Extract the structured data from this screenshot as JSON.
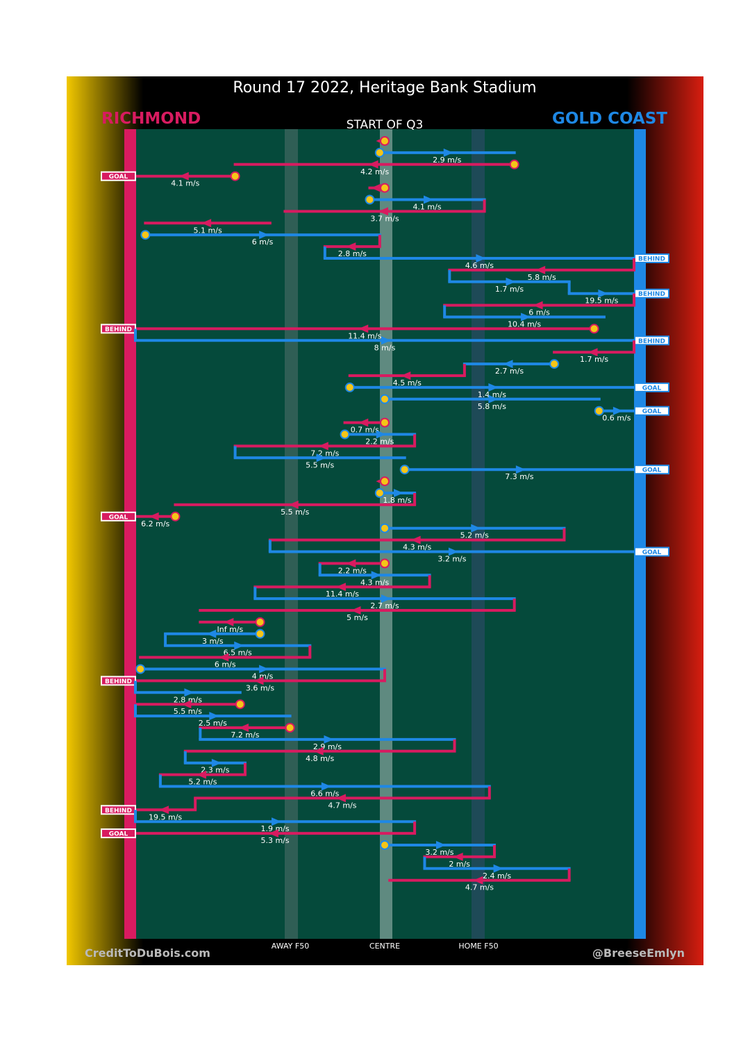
{
  "title": "Round 17 2022, Heritage Bank Stadium",
  "subtitle": "START OF Q3",
  "teams": {
    "left": {
      "name": "RICHMOND",
      "color": "#d81b60"
    },
    "right": {
      "name": "GOLD COAST",
      "color": "#1e88e5"
    }
  },
  "axis_labels": {
    "away": "AWAY F50",
    "centre": "CENTRE",
    "home": "HOME F50"
  },
  "credits": {
    "left": "CreditToDuBois.com",
    "right": "@BreeseEmlyn"
  },
  "colors": {
    "richmond": "#d81b60",
    "gold_coast": "#1e88e5",
    "ground": "#054a3b",
    "ball": "#f5c518"
  },
  "chart_data": {
    "type": "chain",
    "title": "Round 17 2022, Heritage Bank Stadium",
    "subtitle": "START OF Q3",
    "x_axis": {
      "range": [
        0,
        100
      ],
      "unit": "percent of ground (Richmond goal = 0, Gold Coast goal = 100)",
      "ticks": [
        {
          "label": "AWAY F50",
          "x": 31
        },
        {
          "label": "CENTRE",
          "x": 50
        },
        {
          "label": "HOME F50",
          "x": 69
        }
      ]
    },
    "legend": [
      {
        "team": "RICHMOND",
        "color": "#d81b60"
      },
      {
        "team": "GOLD COAST",
        "color": "#1e88e5"
      }
    ],
    "segments": [
      {
        "team": "RICHMOND",
        "from": 50,
        "to": 49,
        "speed": "",
        "ball_start": true
      },
      {
        "team": "GOLD COAST",
        "from": 49,
        "to": 76,
        "speed": "2.9 m/s",
        "ball_start": true
      },
      {
        "team": "RICHMOND",
        "from": 76,
        "to": 20,
        "speed": "4.2 m/s",
        "ball_start": true
      },
      {
        "team": "RICHMOND",
        "from": 20,
        "to": 0,
        "speed": "4.1 m/s",
        "ball_start": true,
        "outcome": "GOAL"
      },
      {
        "team": "RICHMOND",
        "from": 50,
        "to": 47,
        "speed": "",
        "ball_start": true
      },
      {
        "team": "GOLD COAST",
        "from": 47,
        "to": 70,
        "speed": "4.1 m/s",
        "ball_start": true
      },
      {
        "team": "RICHMOND",
        "from": 70,
        "to": 30,
        "speed": "3.7 m/s"
      },
      {
        "team": "RICHMOND",
        "from": 27,
        "to": 2,
        "speed": "5.1 m/s"
      },
      {
        "team": "GOLD COAST",
        "from": 2,
        "to": 49,
        "speed": "6 m/s",
        "ball_start": true
      },
      {
        "team": "RICHMOND",
        "from": 49,
        "to": 38,
        "speed": "2.8 m/s"
      },
      {
        "team": "GOLD COAST",
        "from": 38,
        "to": 100,
        "speed": "4.6 m/s",
        "outcome": "BEHIND"
      },
      {
        "team": "RICHMOND",
        "from": 100,
        "to": 63,
        "speed": "5.8 m/s"
      },
      {
        "team": "GOLD COAST",
        "from": 63,
        "to": 87,
        "speed": "1.7 m/s"
      },
      {
        "team": "GOLD COAST",
        "from": 87,
        "to": 100,
        "speed": "19.5 m/s",
        "outcome": "BEHIND"
      },
      {
        "team": "RICHMOND",
        "from": 100,
        "to": 62,
        "speed": "6 m/s"
      },
      {
        "team": "GOLD COAST",
        "from": 62,
        "to": 94,
        "speed": "10.4 m/s"
      },
      {
        "team": "RICHMOND",
        "from": 92,
        "to": 0,
        "speed": "11.4 m/s",
        "ball_start": true,
        "outcome": "BEHIND"
      },
      {
        "team": "GOLD COAST",
        "from": 0,
        "to": 100,
        "speed": "8 m/s",
        "outcome": "BEHIND"
      },
      {
        "team": "RICHMOND",
        "from": 100,
        "to": 84,
        "speed": "1.7 m/s"
      },
      {
        "team": "GOLD COAST",
        "from": 84,
        "to": 66,
        "speed": "2.7 m/s",
        "ball_start": true
      },
      {
        "team": "RICHMOND",
        "from": 66,
        "to": 43,
        "speed": "4.5 m/s"
      },
      {
        "team": "GOLD COAST",
        "from": 43,
        "to": 100,
        "speed": "1.4 m/s",
        "ball_start": true,
        "outcome": "GOAL"
      },
      {
        "team": "GOLD COAST",
        "from": 50,
        "to": 93,
        "speed": "5.8 m/s",
        "ball_start": true
      },
      {
        "team": "GOLD COAST",
        "from": 93,
        "to": 100,
        "speed": "0.6 m/s",
        "ball_start": true,
        "outcome": "GOAL"
      },
      {
        "team": "RICHMOND",
        "from": 50,
        "to": 42,
        "speed": "0.7 m/s",
        "ball_start": true
      },
      {
        "team": "GOLD COAST",
        "from": 42,
        "to": 56,
        "speed": "2.2 m/s",
        "ball_start": true
      },
      {
        "team": "RICHMOND",
        "from": 56,
        "to": 20,
        "speed": "7.2 m/s"
      },
      {
        "team": "GOLD COAST",
        "from": 20,
        "to": 54,
        "speed": "5.5 m/s"
      },
      {
        "team": "GOLD COAST",
        "from": 54,
        "to": 100,
        "speed": "7.3 m/s",
        "ball_start": true,
        "outcome": "GOAL"
      },
      {
        "team": "RICHMOND",
        "from": 50,
        "to": 49,
        "speed": "",
        "ball_start": true
      },
      {
        "team": "GOLD COAST",
        "from": 49,
        "to": 56,
        "speed": "1.8 m/s",
        "ball_start": true
      },
      {
        "team": "RICHMOND",
        "from": 56,
        "to": 8,
        "speed": "5.5 m/s"
      },
      {
        "team": "RICHMOND",
        "from": 8,
        "to": 0,
        "speed": "6.2 m/s",
        "ball_start": true,
        "outcome": "GOAL"
      },
      {
        "team": "GOLD COAST",
        "from": 50,
        "to": 86,
        "speed": "5.2 m/s",
        "ball_start": true
      },
      {
        "team": "RICHMOND",
        "from": 86,
        "to": 27,
        "speed": "4.3 m/s"
      },
      {
        "team": "GOLD COAST",
        "from": 27,
        "to": 100,
        "speed": "3.2 m/s",
        "outcome": "GOAL"
      },
      {
        "team": "RICHMOND",
        "from": 50,
        "to": 37,
        "speed": "2.2 m/s",
        "ball_start": true
      },
      {
        "team": "GOLD COAST",
        "from": 37,
        "to": 59,
        "speed": "4.3 m/s"
      },
      {
        "team": "RICHMOND",
        "from": 59,
        "to": 24,
        "speed": "11.4 m/s"
      },
      {
        "team": "GOLD COAST",
        "from": 24,
        "to": 76,
        "speed": "2.7 m/s"
      },
      {
        "team": "RICHMOND",
        "from": 76,
        "to": 13,
        "speed": "5 m/s"
      },
      {
        "team": "RICHMOND",
        "from": 25,
        "to": 13,
        "speed": "Inf m/s",
        "ball_start": true
      },
      {
        "team": "GOLD COAST",
        "from": 25,
        "to": 6,
        "speed": "3 m/s",
        "ball_start": true
      },
      {
        "team": "GOLD COAST",
        "from": 6,
        "to": 35,
        "speed": "6.5 m/s"
      },
      {
        "team": "RICHMOND",
        "from": 35,
        "to": 1,
        "speed": "6 m/s"
      },
      {
        "team": "GOLD COAST",
        "from": 1,
        "to": 50,
        "speed": "4 m/s",
        "ball_start": true
      },
      {
        "team": "RICHMOND",
        "from": 50,
        "to": 0,
        "speed": "3.6 m/s",
        "outcome": "BEHIND"
      },
      {
        "team": "GOLD COAST",
        "from": 0,
        "to": 21,
        "speed": "2.8 m/s"
      },
      {
        "team": "RICHMOND",
        "from": 21,
        "to": 0,
        "speed": "5.5 m/s",
        "ball_start": true
      },
      {
        "team": "GOLD COAST",
        "from": 0,
        "to": 31,
        "speed": "2.5 m/s"
      },
      {
        "team": "RICHMOND",
        "from": 31,
        "to": 13,
        "speed": "7.2 m/s",
        "ball_start": true
      },
      {
        "team": "GOLD COAST",
        "from": 13,
        "to": 64,
        "speed": "2.9 m/s"
      },
      {
        "team": "RICHMOND",
        "from": 64,
        "to": 10,
        "speed": "4.8 m/s"
      },
      {
        "team": "GOLD COAST",
        "from": 10,
        "to": 22,
        "speed": "2.3 m/s"
      },
      {
        "team": "RICHMOND",
        "from": 22,
        "to": 5,
        "speed": "5.2 m/s"
      },
      {
        "team": "GOLD COAST",
        "from": 5,
        "to": 71,
        "speed": "6.6 m/s"
      },
      {
        "team": "RICHMOND",
        "from": 71,
        "to": 12,
        "speed": "4.7 m/s"
      },
      {
        "team": "RICHMOND",
        "from": 12,
        "to": 0,
        "speed": "19.5 m/s",
        "outcome": "BEHIND"
      },
      {
        "team": "GOLD COAST",
        "from": 0,
        "to": 56,
        "speed": "1.9 m/s"
      },
      {
        "team": "RICHMOND",
        "from": 56,
        "to": 0,
        "speed": "5.3 m/s",
        "outcome": "GOAL"
      },
      {
        "team": "GOLD COAST",
        "from": 50,
        "to": 72,
        "speed": "3.2 m/s",
        "ball_start": true
      },
      {
        "team": "RICHMOND",
        "from": 72,
        "to": 58,
        "speed": "2 m/s"
      },
      {
        "team": "GOLD COAST",
        "from": 58,
        "to": 87,
        "speed": "2.4 m/s"
      },
      {
        "team": "RICHMOND",
        "from": 87,
        "to": 51,
        "speed": "4.7 m/s"
      }
    ]
  }
}
